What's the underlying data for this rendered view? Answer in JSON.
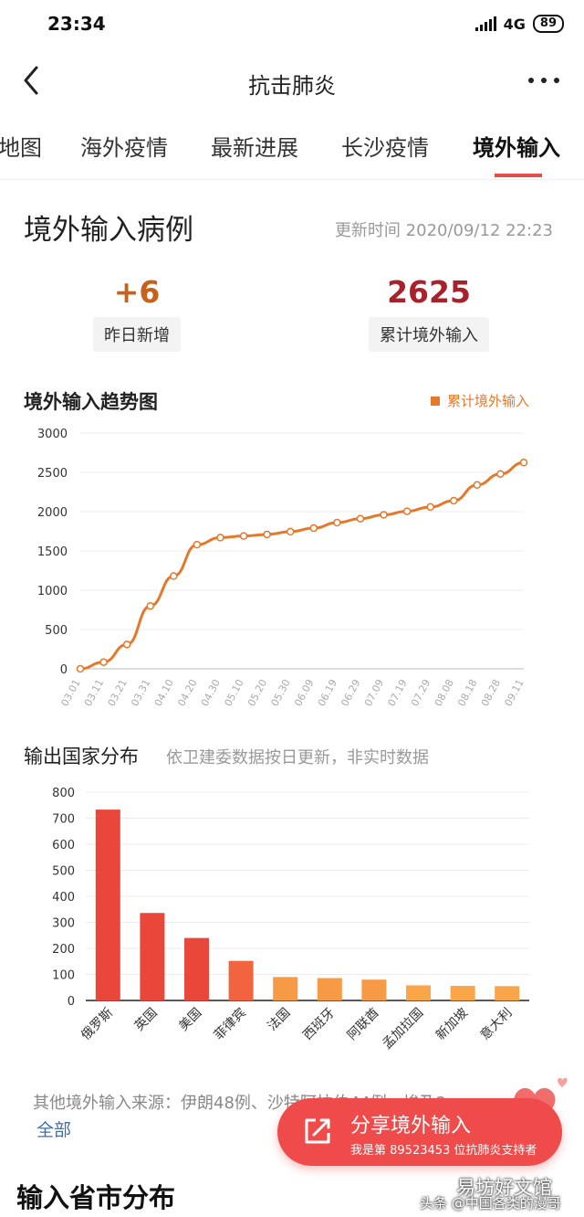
{
  "status_bar": {
    "time": "23:34",
    "network": "4G",
    "battery": "89"
  },
  "nav": {
    "title": "抗击肺炎",
    "back_icon": "chevron-left-icon",
    "more_icon": "more-dots-icon"
  },
  "tabs": [
    {
      "label": "地图"
    },
    {
      "label": "海外疫情"
    },
    {
      "label": "最新进展"
    },
    {
      "label": "长沙疫情"
    },
    {
      "label": "境外输入",
      "active": true
    }
  ],
  "summary": {
    "title": "境外输入病例",
    "updated": "更新时间 2020/09/12 22:23",
    "new_value": "+6",
    "new_label": "昨日新增",
    "new_color": "#c7621a",
    "total_value": "2625",
    "total_label": "累计境外输入",
    "total_color": "#a8212b"
  },
  "trend_chart": {
    "title": "境外输入趋势图",
    "legend": "累计境外输入",
    "chart_data": {
      "type": "line",
      "x": [
        "03.01",
        "03.11",
        "03.21",
        "03.31",
        "04.10",
        "04.20",
        "04.30",
        "05.10",
        "05.20",
        "05.30",
        "06.09",
        "06.19",
        "06.29",
        "07.09",
        "07.19",
        "07.29",
        "08.08",
        "08.18",
        "08.28",
        "09.11"
      ],
      "series": [
        {
          "name": "累计境外输入",
          "values": [
            0,
            85,
            310,
            800,
            1180,
            1580,
            1670,
            1690,
            1710,
            1745,
            1790,
            1860,
            1910,
            1960,
            2005,
            2060,
            2140,
            2340,
            2480,
            2625
          ]
        }
      ],
      "yticks": [
        "0",
        "500",
        "1000",
        "1500",
        "2000",
        "2500",
        "3000"
      ],
      "ylim": [
        0,
        3000
      ],
      "color": "#e4782b",
      "grid": true
    }
  },
  "bar_chart": {
    "title": "输出国家分布",
    "note": "依卫建委数据按日更新，非实时数据",
    "chart_data": {
      "type": "bar",
      "categories": [
        "俄罗斯",
        "英国",
        "美国",
        "菲律宾",
        "法国",
        "西班牙",
        "阿联酋",
        "孟加拉国",
        "新加坡",
        "意大利"
      ],
      "values": [
        733,
        336,
        240,
        152,
        90,
        86,
        80,
        58,
        56,
        55
      ],
      "colors": [
        "#e9473a",
        "#e9473a",
        "#e9473a",
        "#f2643f",
        "#f79a45",
        "#f79a45",
        "#f79a45",
        "#f9a54a",
        "#f9a54a",
        "#f9a54a"
      ],
      "yticks": [
        "0",
        "100",
        "200",
        "300",
        "400",
        "500",
        "600",
        "700",
        "800"
      ],
      "ylim": [
        0,
        800
      ],
      "grid": true
    }
  },
  "footer": {
    "note": "其他境外输入来源：伊朗48例、沙特阿拉伯44例、埃及2...",
    "all_link": "全部"
  },
  "share": {
    "label": "分享境外输入",
    "sub": "我是第 89523453 位抗肺炎支持者"
  },
  "next_section": "输入省市分布",
  "watermark": {
    "line1": "易坊好文馆",
    "line2": "头条 @中国各类的漫哥"
  }
}
